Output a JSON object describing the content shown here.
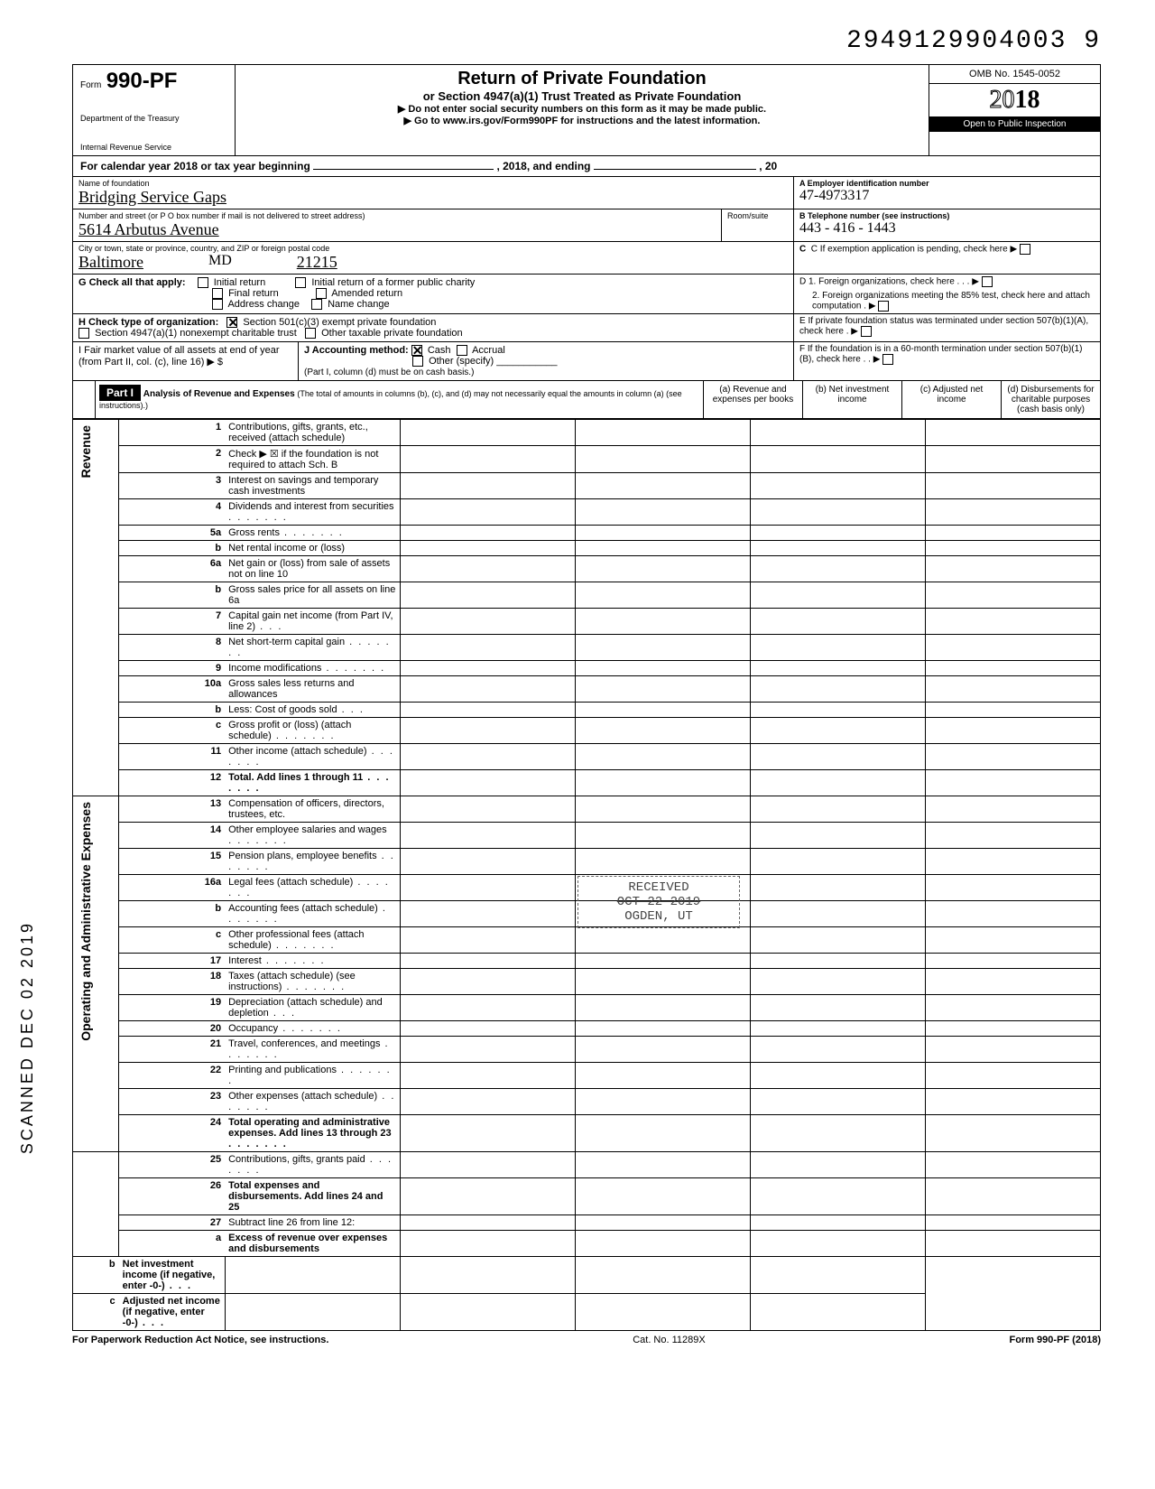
{
  "top_code": "29491299040039",
  "top_code_spaced": "2949129904003  9",
  "header": {
    "form_pre": "Form",
    "form_no": "990-PF",
    "dept1": "Department of the Treasury",
    "dept2": "Internal Revenue Service",
    "title": "Return of Private Foundation",
    "sub1": "or Section 4947(a)(1) Trust Treated as Private Foundation",
    "sub2": "▶ Do not enter social security numbers on this form as it may be made public.",
    "sub3": "▶ Go to www.irs.gov/Form990PF for instructions and the latest information.",
    "omb": "OMB No. 1545-0052",
    "year_prefix": "20",
    "year_bold": "18",
    "inspect": "Open to Public Inspection"
  },
  "cal_year": {
    "prefix": "For calendar year 2018 or tax year beginning",
    "mid": ", 2018, and ending",
    "suffix": ", 20"
  },
  "foundation": {
    "name_label": "Name of foundation",
    "name": "Bridging Service Gaps",
    "addr_label": "Number and street (or P O  box number if mail is not delivered to street address)",
    "addr": "5614 Arbutus Avenue",
    "room_label": "Room/suite",
    "city_label": "City or town, state or province, country, and ZIP or foreign postal code",
    "city": "Baltimore",
    "state": "MD",
    "zip": "21215",
    "ein_label": "A  Employer identification number",
    "ein": "47-4973317",
    "phone_label": "B  Telephone number (see instructions)",
    "phone": "443 - 416 - 1443",
    "c_label": "C  If exemption application is pending, check here ▶"
  },
  "section_g": {
    "label": "G   Check all that apply:",
    "opts": [
      "Initial return",
      "Final return",
      "Address change",
      "Initial return of a former public charity",
      "Amended return",
      "Name change"
    ]
  },
  "section_d": {
    "d1": "D  1. Foreign organizations, check here .   .   . ▶",
    "d2": "2. Foreign organizations meeting the 85% test, check here and attach computation   .  ▶"
  },
  "section_h": {
    "label": "H   Check type of organization:",
    "opt1": "Section 501(c)(3) exempt private foundation",
    "opt2": "Section 4947(a)(1) nonexempt charitable trust",
    "opt3": "Other taxable private foundation"
  },
  "section_e": "E  If private foundation status was terminated under section 507(b)(1)(A), check here  .     ▶",
  "section_i": {
    "l1": "I    Fair market value of all assets at end of year  (from Part II, col. (c), line 16) ▶  $",
    "j": "J   Accounting method:",
    "j_cash": "Cash",
    "j_accrual": "Accrual",
    "j_other": "Other (specify)",
    "j_note": "(Part I, column (d) must be on cash basis.)"
  },
  "section_f": "F  If the foundation is in a 60-month termination under section 507(b)(1)(B), check here  .   . ▶",
  "part1": {
    "label": "Part I",
    "title": "Analysis of Revenue and Expenses",
    "note": "(The total of amounts in columns (b), (c), and (d) may not necessarily equal the amounts in column (a) (see instructions).)",
    "col_a": "(a) Revenue and expenses per books",
    "col_b": "(b) Net investment income",
    "col_c": "(c) Adjusted net income",
    "col_d": "(d) Disbursements for charitable purposes (cash basis only)"
  },
  "vert_labels": {
    "revenue": "Revenue",
    "expenses": "Operating and Administrative Expenses"
  },
  "lines": [
    {
      "n": "1",
      "t": "Contributions, gifts, grants, etc., received (attach schedule)"
    },
    {
      "n": "2",
      "t": "Check ▶ ☒  if the foundation is not required to attach Sch. B"
    },
    {
      "n": "3",
      "t": "Interest on savings and temporary cash investments"
    },
    {
      "n": "4",
      "t": "Dividends and interest from securities",
      "dots": true
    },
    {
      "n": "5a",
      "t": "Gross rents",
      "dots": true
    },
    {
      "n": "b",
      "t": "Net rental income or (loss)"
    },
    {
      "n": "6a",
      "t": "Net gain or (loss) from sale of assets not on line 10"
    },
    {
      "n": "b",
      "t": "Gross sales price for all assets on line 6a"
    },
    {
      "n": "7",
      "t": "Capital gain net income (from Part IV, line 2)",
      "dots": "short"
    },
    {
      "n": "8",
      "t": "Net short-term capital gain",
      "dots": true
    },
    {
      "n": "9",
      "t": "Income modifications",
      "dots": true
    },
    {
      "n": "10a",
      "t": "Gross sales less returns and allowances"
    },
    {
      "n": "b",
      "t": "Less: Cost of goods sold",
      "dots": "short"
    },
    {
      "n": "c",
      "t": "Gross profit or (loss) (attach schedule)",
      "dots": true
    },
    {
      "n": "11",
      "t": "Other income (attach schedule)",
      "dots": true
    },
    {
      "n": "12",
      "t": "Total. Add lines 1 through 11",
      "dots": true,
      "bold": true
    },
    {
      "n": "13",
      "t": "Compensation of officers, directors, trustees, etc."
    },
    {
      "n": "14",
      "t": "Other employee salaries and wages",
      "dots": true
    },
    {
      "n": "15",
      "t": "Pension plans, employee benefits",
      "dots": true
    },
    {
      "n": "16a",
      "t": "Legal fees (attach schedule)",
      "dots": true
    },
    {
      "n": "b",
      "t": "Accounting fees (attach schedule)",
      "dots": true
    },
    {
      "n": "c",
      "t": "Other professional fees (attach schedule)",
      "dots": true
    },
    {
      "n": "17",
      "t": "Interest",
      "dots": true
    },
    {
      "n": "18",
      "t": "Taxes (attach schedule) (see instructions)",
      "dots": true
    },
    {
      "n": "19",
      "t": "Depreciation (attach schedule) and depletion",
      "dots": "short"
    },
    {
      "n": "20",
      "t": "Occupancy",
      "dots": true
    },
    {
      "n": "21",
      "t": "Travel, conferences, and meetings",
      "dots": true
    },
    {
      "n": "22",
      "t": "Printing and publications",
      "dots": true
    },
    {
      "n": "23",
      "t": "Other expenses (attach schedule)",
      "dots": true
    },
    {
      "n": "24",
      "t": "Total operating and administrative expenses. Add lines 13 through 23",
      "dots": true,
      "bold": true
    },
    {
      "n": "25",
      "t": "Contributions, gifts, grants paid",
      "dots": true
    },
    {
      "n": "26",
      "t": "Total expenses and disbursements. Add lines 24 and 25",
      "bold": true
    },
    {
      "n": "27",
      "t": "Subtract line 26 from line 12:"
    },
    {
      "n": "a",
      "t": "Excess of revenue over expenses and disbursements",
      "bold": true
    },
    {
      "n": "b",
      "t": "Net investment income (if negative, enter -0-)",
      "bold": true,
      "dots": "short"
    },
    {
      "n": "c",
      "t": "Adjusted net income (if negative, enter -0-)",
      "bold": true,
      "dots": "short"
    }
  ],
  "footer": {
    "left": "For Paperwork Reduction Act Notice, see instructions.",
    "mid": "Cat. No. 11289X",
    "right": "Form 990-PF (2018)"
  },
  "stamps": {
    "received": "RECEIVED",
    "date": "OCT 22 2019",
    "ogden": "OGDEN, UT",
    "side": "SCANNED DEC 02 2019"
  }
}
